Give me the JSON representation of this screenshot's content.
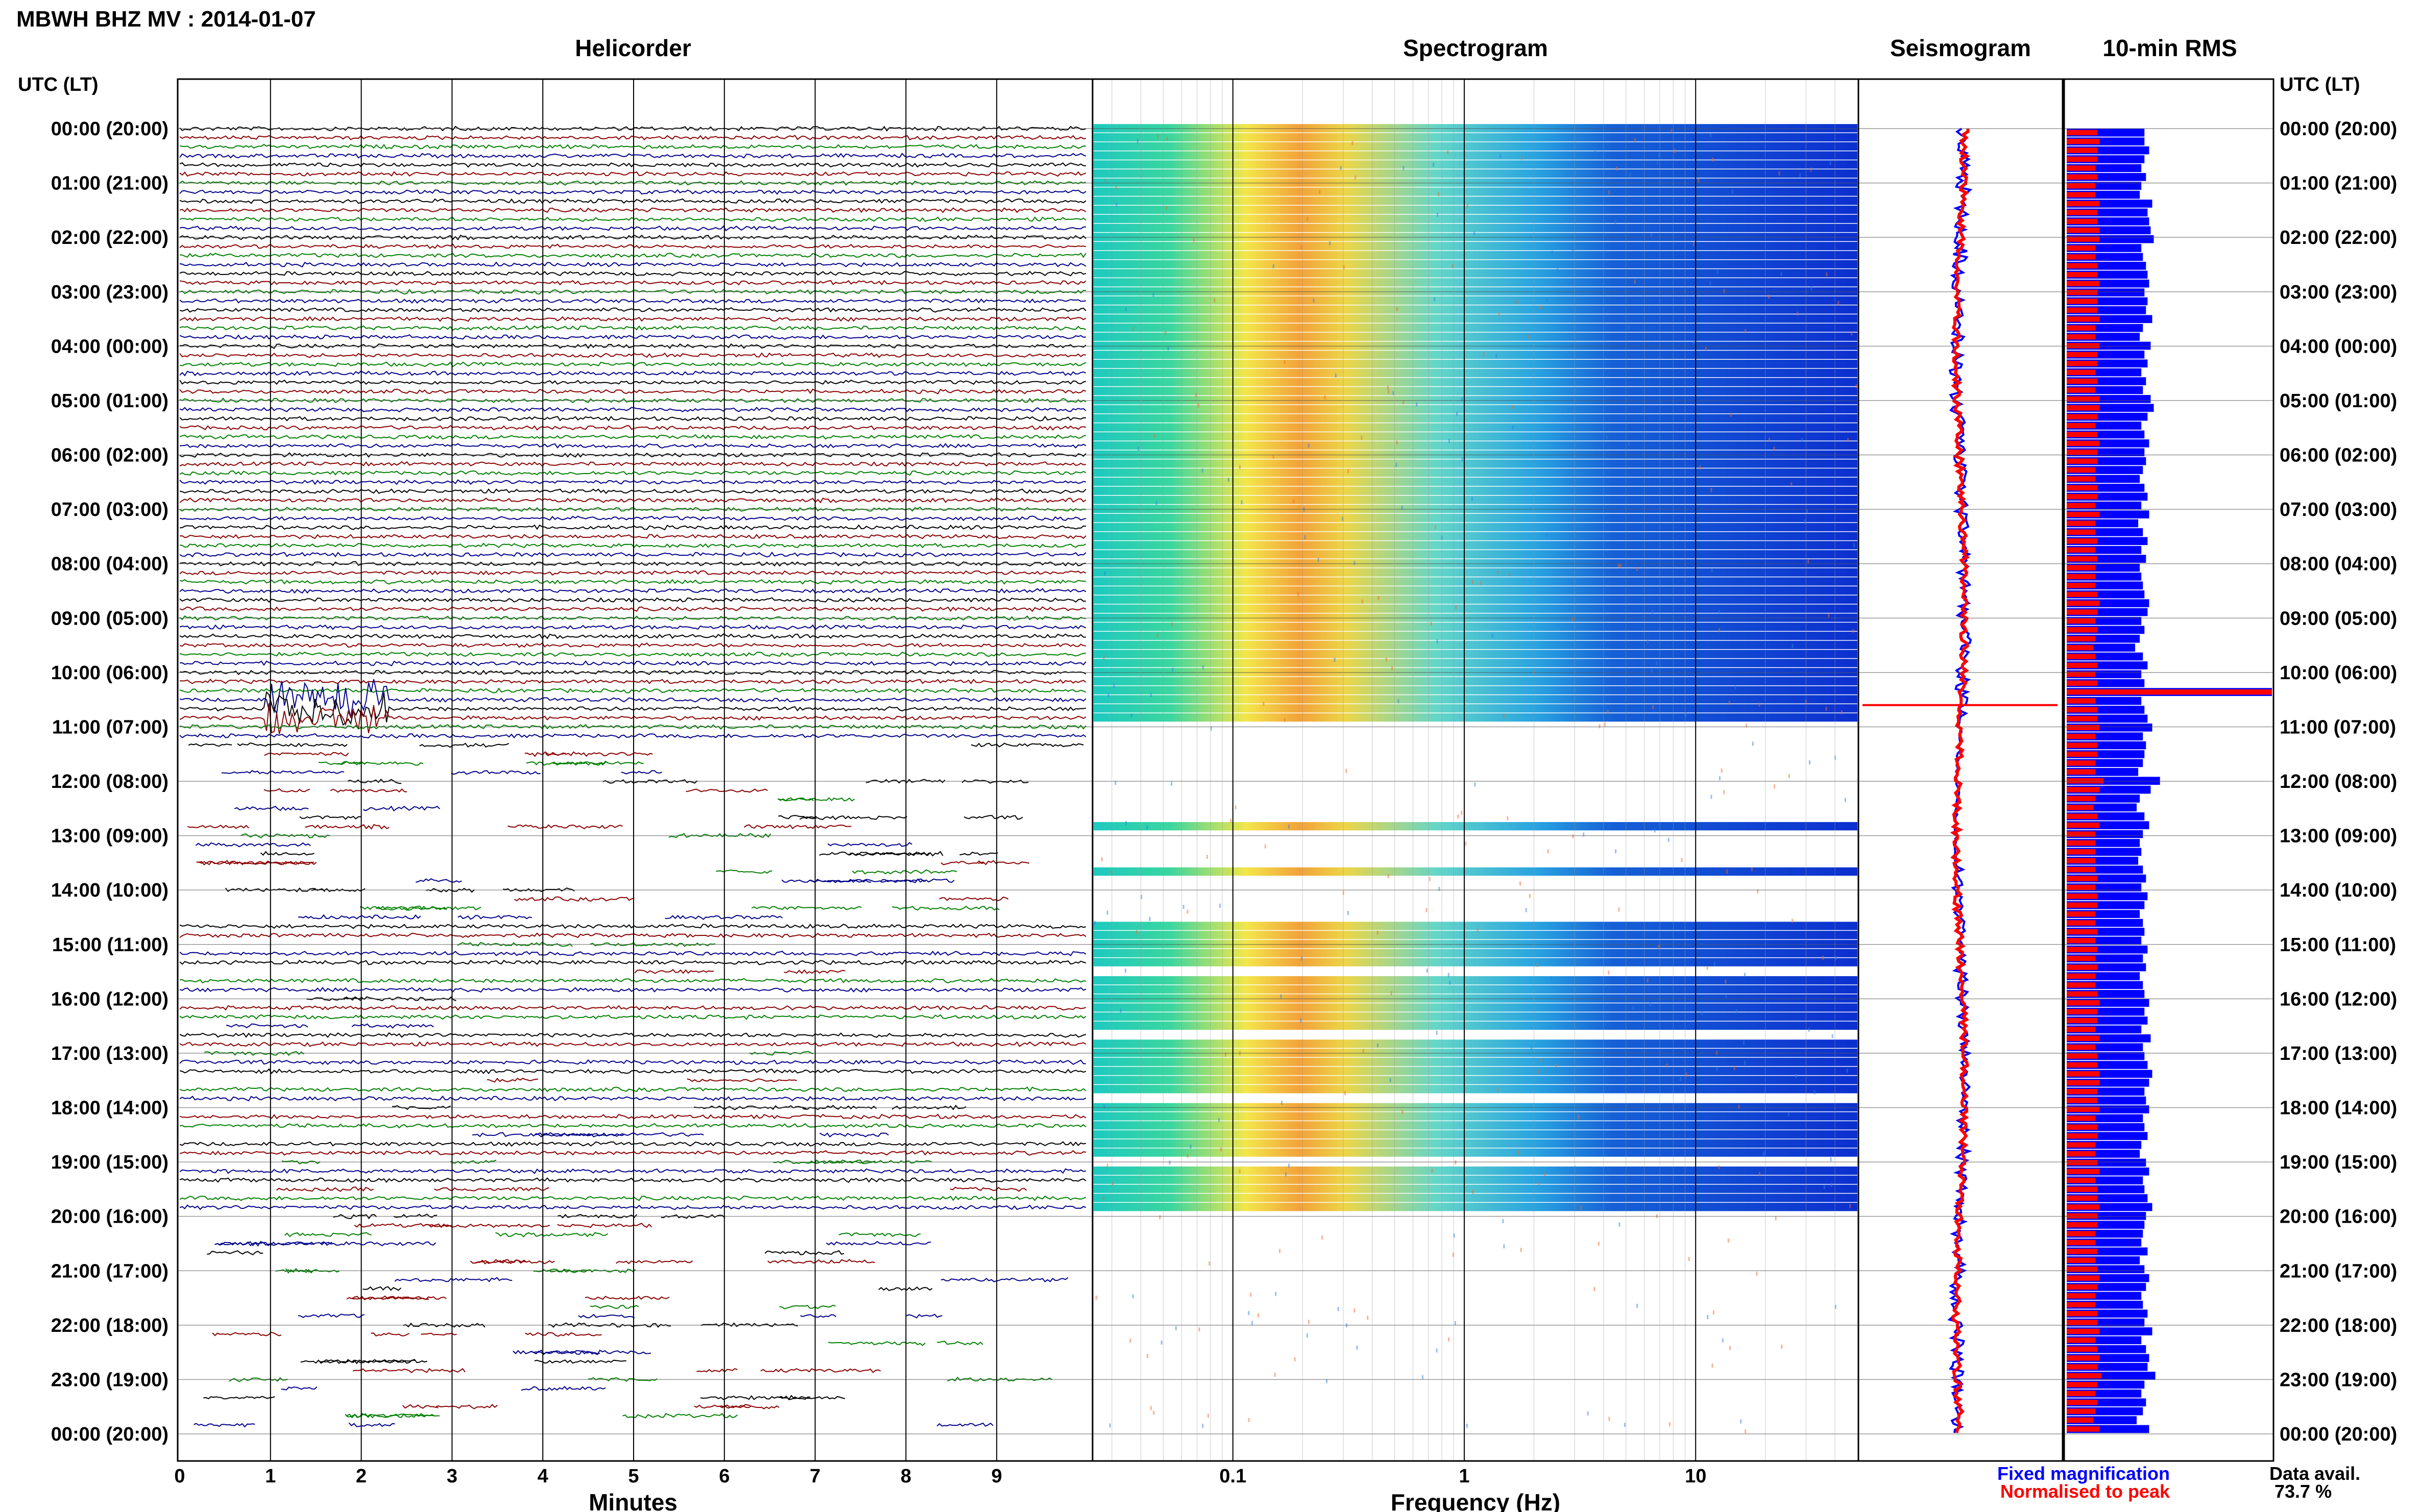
{
  "header": {
    "title": "MBWH BHZ MV : 2014-01-07"
  },
  "panels": {
    "helicorder": "Helicorder",
    "spectrogram": "Spectrogram",
    "seismogram": "Seismogram",
    "rms": "10-min RMS"
  },
  "axis": {
    "time_label_left": "UTC (LT)",
    "time_label_right": "UTC (LT)",
    "time_ticks": [
      "00:00 (20:00)",
      "01:00 (21:00)",
      "02:00 (22:00)",
      "03:00 (23:00)",
      "04:00 (00:00)",
      "05:00 (01:00)",
      "06:00 (02:00)",
      "07:00 (03:00)",
      "08:00 (04:00)",
      "09:00 (05:00)",
      "10:00 (06:00)",
      "11:00 (07:00)",
      "12:00 (08:00)",
      "13:00 (09:00)",
      "14:00 (10:00)",
      "15:00 (11:00)",
      "16:00 (12:00)",
      "17:00 (13:00)",
      "18:00 (14:00)",
      "19:00 (15:00)",
      "20:00 (16:00)",
      "21:00 (17:00)",
      "22:00 (18:00)",
      "23:00 (19:00)",
      "00:00 (20:00)"
    ],
    "minutes_label": "Minutes",
    "minutes_ticks": [
      "0",
      "1",
      "2",
      "3",
      "4",
      "5",
      "6",
      "7",
      "8",
      "9"
    ],
    "freq_label": "Frequency (Hz)",
    "freq_ticks": [
      "0.1",
      "1",
      "10"
    ]
  },
  "legend": {
    "fixed": "Fixed magnification",
    "normalised": "Normalised to peak",
    "fixed_color": "#0000ff",
    "normalised_color": "#ff0000"
  },
  "availability": {
    "label": "Data avail.",
    "value": "73.7 %"
  },
  "colors": {
    "trace": [
      "#000000",
      "#8b0000",
      "#008000",
      "#00008b"
    ]
  },
  "chart_data": {
    "type": "heatmap",
    "station": "MBWH BHZ MV",
    "date": "2014-01-07",
    "helicorder": {
      "x_unit": "minutes",
      "xlim": [
        0,
        10
      ],
      "rows_per_hour": 6
    },
    "spectrogram": {
      "x_unit": "Hz",
      "xscale": "log",
      "xlim": [
        0.025,
        50
      ],
      "peak_band_hz": [
        0.15,
        0.3
      ]
    },
    "data_availability_percent": 73.7,
    "rms_10min": {
      "series": [
        {
          "name": "Fixed magnification",
          "color": "#0000ff",
          "values": [
            50,
            50,
            53,
            50,
            48,
            51,
            48,
            47,
            55,
            52,
            53,
            54,
            56,
            48,
            49,
            51,
            52,
            53,
            50,
            52,
            51,
            55,
            49,
            47,
            54,
            50,
            52,
            48,
            51,
            49,
            54,
            56,
            52,
            48,
            50,
            53,
            50,
            51,
            49,
            47,
            50,
            52,
            48,
            53,
            46,
            49,
            52,
            48,
            51,
            47,
            48,
            49,
            50,
            53,
            52,
            48,
            50,
            47,
            44,
            49,
            52,
            48,
            50,
            132,
            48,
            50,
            52,
            55,
            49,
            51,
            50,
            49,
            46,
            60,
            54,
            47,
            45,
            50,
            53,
            49,
            47,
            48,
            46,
            49,
            51,
            48,
            52,
            50,
            47,
            49,
            50,
            48,
            52,
            49,
            51,
            47,
            49,
            50,
            53,
            50,
            52,
            48,
            54,
            49,
            50,
            52,
            55,
            53,
            50,
            51,
            53,
            49,
            50,
            52,
            48,
            47,
            51,
            53,
            49,
            50,
            52,
            55,
            51,
            50,
            49,
            48,
            52,
            47,
            50,
            53,
            51,
            48,
            49,
            52,
            50,
            55,
            48,
            51,
            53,
            52,
            57,
            50,
            48,
            51,
            49,
            45,
            53
          ]
        },
        {
          "name": "Normalised to peak",
          "color": "#ff0000",
          "values": [
            15,
            16,
            15,
            15,
            14,
            15,
            14,
            14,
            16,
            15,
            15,
            16,
            16,
            14,
            14,
            15,
            15,
            16,
            15,
            15,
            15,
            16,
            14,
            14,
            16,
            15,
            15,
            14,
            15,
            14,
            16,
            16,
            15,
            14,
            15,
            16,
            15,
            15,
            14,
            14,
            15,
            15,
            14,
            16,
            14,
            14,
            15,
            14,
            15,
            14,
            14,
            14,
            15,
            16,
            15,
            14,
            15,
            14,
            13,
            14,
            15,
            14,
            15,
            100,
            14,
            15,
            15,
            16,
            14,
            15,
            15,
            14,
            14,
            18,
            16,
            14,
            13,
            15,
            16,
            14,
            14,
            14,
            14,
            14,
            15,
            14,
            15,
            15,
            14,
            14,
            15,
            14,
            15,
            14,
            15,
            14,
            14,
            15,
            16,
            15,
            15,
            14,
            16,
            14,
            15,
            15,
            16,
            16,
            15,
            15,
            16,
            14,
            15,
            15,
            14,
            14,
            15,
            16,
            14,
            15,
            15,
            16,
            15,
            15,
            14,
            14,
            15,
            14,
            15,
            16,
            15,
            14,
            14,
            15,
            15,
            16,
            14,
            15,
            16,
            15,
            17,
            15,
            14,
            15,
            14,
            13,
            16
          ]
        }
      ]
    }
  }
}
